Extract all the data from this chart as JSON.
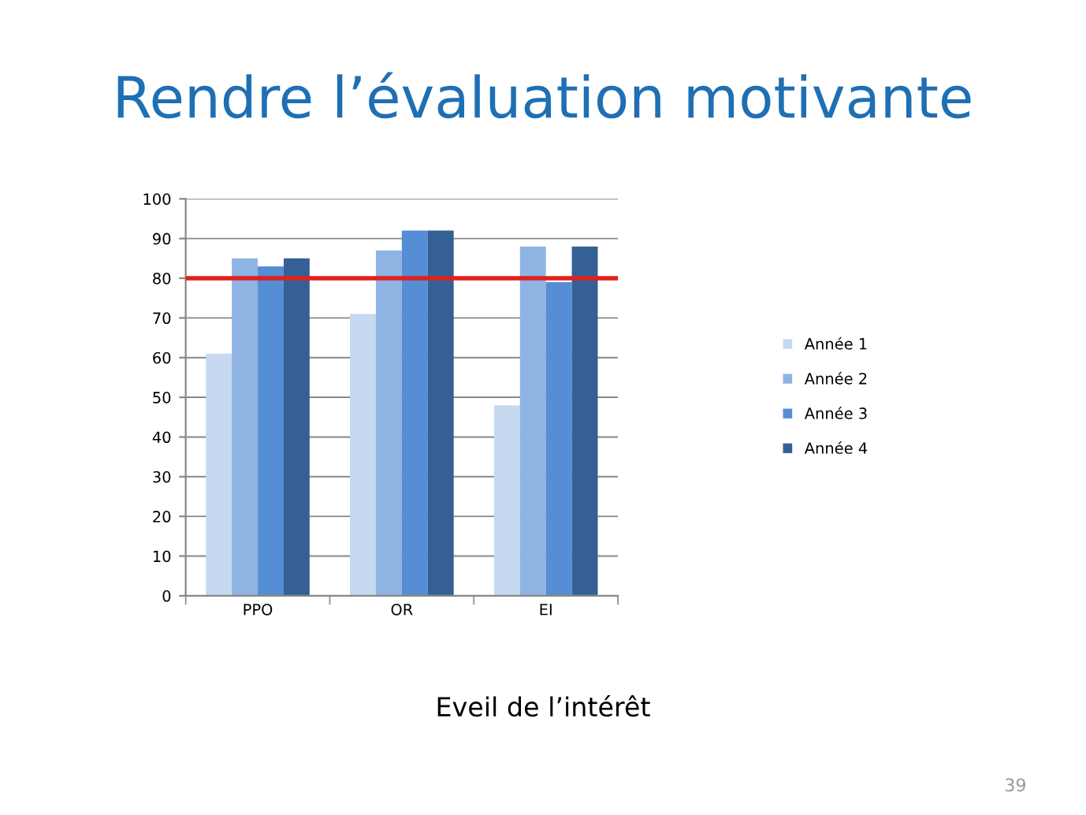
{
  "chart_data": {
    "type": "bar",
    "title": "Rendre l’évaluation motivante",
    "xlabel": "Eveil de l’intérêt",
    "categories": [
      "PPO",
      "OR",
      "EI"
    ],
    "series": [
      {
        "name": "Année 1",
        "color": "#c6d9f1",
        "values": [
          61,
          71,
          48
        ]
      },
      {
        "name": "Année 2",
        "color": "#8eb4e3",
        "values": [
          85,
          87,
          88
        ]
      },
      {
        "name": "Année 3",
        "color": "#558ed5",
        "values": [
          83,
          92,
          79
        ]
      },
      {
        "name": "Année 4",
        "color": "#355f95",
        "values": [
          85,
          92,
          88
        ]
      }
    ],
    "ylim": [
      0,
      100
    ],
    "yticks": [
      0,
      10,
      20,
      30,
      40,
      50,
      60,
      70,
      80,
      90,
      100
    ],
    "ref_lines": [
      {
        "axis": "y",
        "value": 80,
        "color": "#e0201b"
      }
    ],
    "grid": "y",
    "legend": "right",
    "annotations": [
      "39"
    ]
  }
}
